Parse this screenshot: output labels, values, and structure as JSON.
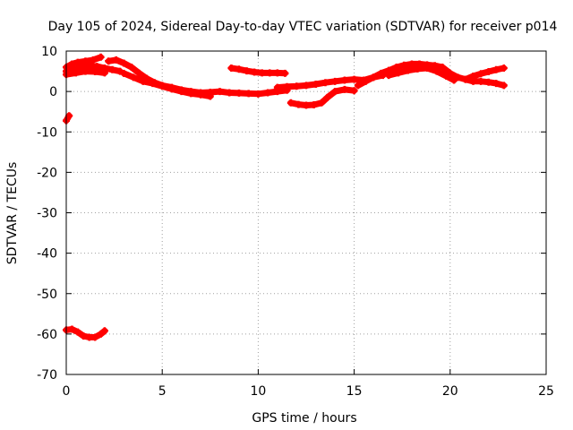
{
  "chart_data": {
    "type": "scatter",
    "title": "Day 105 of 2024, Sidereal Day-to-day VTEC variation (SDTVAR) for receiver p014",
    "xlabel": "GPS time / hours",
    "ylabel": "SDTVAR / TECUs",
    "xlim": [
      0,
      25
    ],
    "ylim": [
      -70,
      10
    ],
    "xticks": [
      "0",
      "5",
      "10",
      "15",
      "20",
      "25"
    ],
    "yticks": [
      "10",
      "0",
      "-10",
      "-20",
      "-30",
      "-40",
      "-50",
      "-60",
      "-70"
    ],
    "grid": true,
    "marker_color": "#ff0000",
    "series": [
      {
        "name": "track-1",
        "x": [
          0.0,
          0.3,
          0.6,
          1.0,
          1.4,
          1.8
        ],
        "y": [
          6.0,
          6.8,
          7.2,
          7.5,
          7.8,
          8.5
        ]
      },
      {
        "name": "track-2",
        "x": [
          0.0,
          0.4,
          0.8,
          1.2,
          1.6,
          2.0,
          2.4,
          2.8
        ],
        "y": [
          5.0,
          5.4,
          6.0,
          6.4,
          6.2,
          5.8,
          5.4,
          5.0
        ]
      },
      {
        "name": "track-3",
        "x": [
          0.0,
          0.5,
          1.0,
          1.5,
          2.0
        ],
        "y": [
          4.2,
          4.6,
          5.0,
          4.9,
          4.6
        ]
      },
      {
        "name": "track-4",
        "x": [
          2.2,
          2.6,
          3.0,
          3.4,
          3.8,
          4.2,
          4.6,
          5.0,
          5.5,
          6.0,
          6.5,
          7.0,
          7.5,
          8.0,
          8.5,
          9.0,
          9.5,
          10.0,
          10.5,
          11.0,
          11.5
        ],
        "y": [
          7.5,
          7.8,
          7.0,
          6.0,
          4.5,
          3.2,
          2.2,
          1.5,
          1.0,
          0.4,
          0.0,
          -0.3,
          -0.2,
          0.0,
          -0.3,
          -0.4,
          -0.5,
          -0.6,
          -0.3,
          0.0,
          0.3
        ]
      },
      {
        "name": "track-5",
        "x": [
          3.0,
          3.5,
          4.0,
          4.5,
          5.0,
          5.5,
          6.0,
          6.5,
          7.0,
          7.5
        ],
        "y": [
          4.5,
          3.5,
          2.5,
          2.0,
          1.3,
          0.6,
          0.0,
          -0.5,
          -0.8,
          -1.2
        ]
      },
      {
        "name": "track-6",
        "x": [
          8.6,
          9.0,
          9.4,
          9.8,
          10.2,
          10.6,
          11.0,
          11.4
        ],
        "y": [
          5.8,
          5.5,
          5.1,
          4.8,
          4.6,
          4.6,
          4.6,
          4.5
        ]
      },
      {
        "name": "track-7",
        "x": [
          11.0,
          11.5,
          12.0,
          12.5,
          13.0,
          13.5,
          14.0,
          14.5,
          15.0,
          15.5,
          16.0,
          16.5
        ],
        "y": [
          1.0,
          1.2,
          1.3,
          1.5,
          1.8,
          2.2,
          2.5,
          2.8,
          3.0,
          2.8,
          3.5,
          4.0
        ]
      },
      {
        "name": "track-8",
        "x": [
          11.7,
          12.1,
          12.5,
          12.9,
          13.3,
          13.6,
          14.0,
          14.5,
          15.0
        ],
        "y": [
          -2.8,
          -3.2,
          -3.4,
          -3.3,
          -2.8,
          -1.5,
          0.0,
          0.5,
          0.2
        ]
      },
      {
        "name": "track-9",
        "x": [
          15.2,
          15.6,
          16.0,
          16.4,
          16.8,
          17.2,
          17.6,
          18.0,
          18.4,
          18.8,
          19.2,
          19.6,
          20.0,
          20.4,
          20.8,
          21.2,
          21.6,
          22.0,
          22.4,
          22.8
        ],
        "y": [
          1.5,
          2.5,
          3.5,
          4.5,
          5.2,
          6.0,
          6.5,
          6.8,
          6.8,
          6.6,
          6.4,
          6.0,
          4.5,
          3.5,
          3.0,
          2.5,
          2.5,
          2.3,
          2.0,
          1.5
        ]
      },
      {
        "name": "track-10",
        "x": [
          16.8,
          17.3,
          17.8,
          18.3,
          18.8,
          19.3,
          19.8,
          20.2
        ],
        "y": [
          4.0,
          4.6,
          5.2,
          5.6,
          5.8,
          5.0,
          3.8,
          2.8
        ]
      },
      {
        "name": "track-11",
        "x": [
          20.8,
          21.2,
          21.6,
          22.0,
          22.4,
          22.8
        ],
        "y": [
          3.0,
          3.8,
          4.4,
          4.9,
          5.4,
          5.8
        ]
      },
      {
        "name": "track-12",
        "x": [
          0.0,
          0.15
        ],
        "y": [
          -7.2,
          -6.0
        ]
      },
      {
        "name": "track-13",
        "x": [
          0.0,
          0.3,
          0.6,
          0.9,
          1.2,
          1.5,
          1.8,
          2.0
        ],
        "y": [
          -59.0,
          -58.8,
          -59.5,
          -60.5,
          -60.8,
          -60.8,
          -60.0,
          -59.2
        ]
      }
    ]
  }
}
